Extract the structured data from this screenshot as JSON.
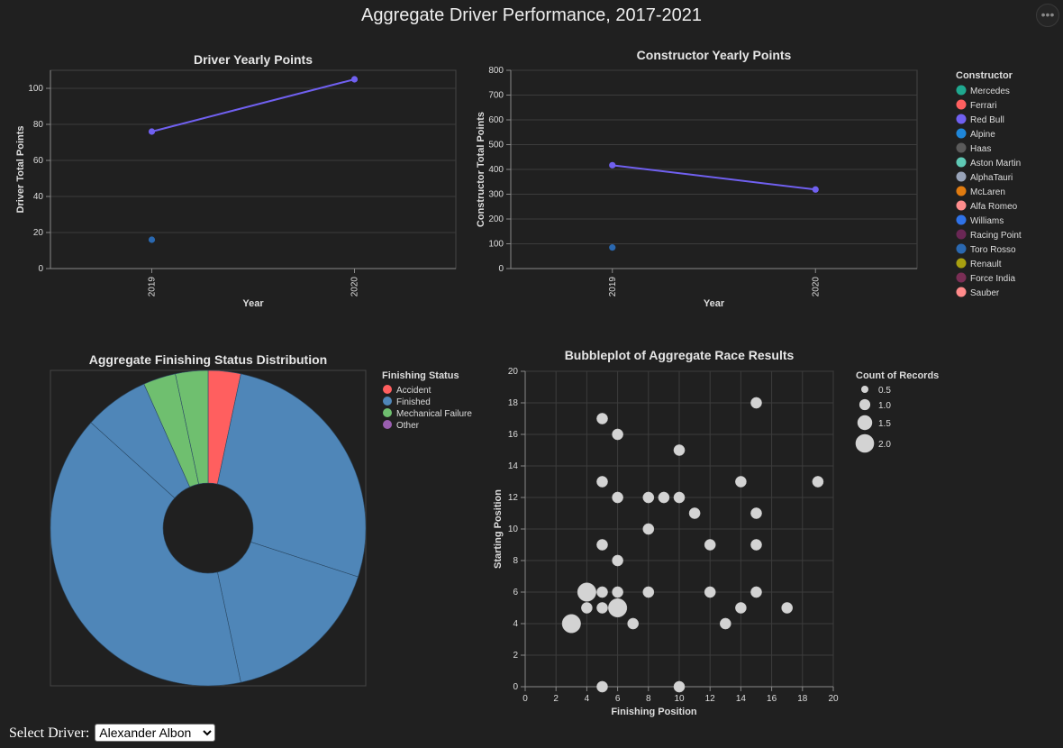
{
  "page": {
    "title": "Aggregate Driver Performance, 2017-2021",
    "menu_icon": "ellipsis-icon",
    "menu_glyph": "•••"
  },
  "footer": {
    "label": "Select Driver:",
    "selected_driver": "Alexander Albon"
  },
  "colors": {
    "background": "#202020",
    "grid": "#3c3c3c",
    "text": "#dddddd",
    "red_bull": "#7060f0",
    "toro_rosso": "#2a68b0",
    "finished": "#4f86b8",
    "accident": "#ff5f5f",
    "mechanical": "#6fbf6f",
    "other": "#9a5fb0",
    "bubble": "#d3d3d3"
  },
  "chart_data": [
    {
      "id": "driver",
      "type": "line",
      "title": "Driver Yearly Points",
      "xlabel": "Year",
      "ylabel": "Driver Total Points",
      "x_ticks": [
        "2019",
        "2020"
      ],
      "y_ticks": [
        0,
        20,
        40,
        60,
        80,
        100
      ],
      "ylim": [
        0,
        110
      ],
      "grid": true,
      "series": [
        {
          "constructor": "Red Bull",
          "color": "#7060f0",
          "line": true,
          "x": [
            "2019",
            "2020"
          ],
          "y": [
            76,
            105
          ]
        },
        {
          "constructor": "Toro Rosso",
          "color": "#2a68b0",
          "line": false,
          "x": [
            "2019"
          ],
          "y": [
            16
          ]
        }
      ]
    },
    {
      "id": "constructor",
      "type": "line",
      "title": "Constructor Yearly Points",
      "xlabel": "Year",
      "ylabel": "Constructor Total Points",
      "x_ticks": [
        "2019",
        "2020"
      ],
      "y_ticks": [
        0,
        100,
        200,
        300,
        400,
        500,
        600,
        700,
        800
      ],
      "ylim": [
        0,
        800
      ],
      "grid": true,
      "legend": {
        "title": "Constructor",
        "placement": "right",
        "items": [
          {
            "label": "Mercedes",
            "color": "#1fa88f"
          },
          {
            "label": "Ferrari",
            "color": "#ff6060"
          },
          {
            "label": "Red Bull",
            "color": "#7060f0"
          },
          {
            "label": "Alpine",
            "color": "#1f86d8"
          },
          {
            "label": "Haas",
            "color": "#5a5a5a"
          },
          {
            "label": "Aston Martin",
            "color": "#5fc9b5"
          },
          {
            "label": "AlphaTauri",
            "color": "#98a3b8"
          },
          {
            "label": "McLaren",
            "color": "#e07b10"
          },
          {
            "label": "Alfa Romeo",
            "color": "#ff8d8d"
          },
          {
            "label": "Williams",
            "color": "#2f72e8"
          },
          {
            "label": "Racing Point",
            "color": "#6a2755"
          },
          {
            "label": "Toro Rosso",
            "color": "#2a68b0"
          },
          {
            "label": "Renault",
            "color": "#a8a010"
          },
          {
            "label": "Force India",
            "color": "#7a2e55"
          },
          {
            "label": "Sauber",
            "color": "#ff8a8a"
          }
        ]
      },
      "series": [
        {
          "constructor": "Red Bull",
          "color": "#7060f0",
          "line": true,
          "x": [
            "2019",
            "2020"
          ],
          "y": [
            417,
            319
          ]
        },
        {
          "constructor": "Toro Rosso",
          "color": "#2a68b0",
          "line": false,
          "x": [
            "2019"
          ],
          "y": [
            85
          ]
        }
      ]
    },
    {
      "id": "status",
      "type": "pie",
      "title": "Aggregate Finishing Status Distribution",
      "legend": {
        "title": "Finishing Status",
        "placement": "right",
        "items": [
          {
            "label": "Accident",
            "color": "#ff5f5f"
          },
          {
            "label": "Finished",
            "color": "#4f86b8"
          },
          {
            "label": "Mechanical Failure",
            "color": "#6fbf6f"
          },
          {
            "label": "Other",
            "color": "#9a5fb0"
          }
        ]
      },
      "slices": [
        {
          "status": "Accident",
          "value": 1,
          "color": "#ff5f5f"
        },
        {
          "status": "Finished",
          "value": 8,
          "color": "#4f86b8"
        },
        {
          "status": "Finished",
          "value": 5,
          "color": "#4f86b8"
        },
        {
          "status": "Finished",
          "value": 12,
          "color": "#4f86b8"
        },
        {
          "status": "Finished",
          "value": 2,
          "color": "#4f86b8"
        },
        {
          "status": "Mechanical Failure",
          "value": 1,
          "color": "#6fbf6f"
        },
        {
          "status": "Mechanical Failure",
          "value": 1,
          "color": "#6fbf6f"
        }
      ]
    },
    {
      "id": "bubble",
      "type": "scatter",
      "title": "Bubbleplot of Aggregate Race Results",
      "xlabel": "Finishing Position",
      "ylabel": "Starting Position",
      "xlim": [
        0,
        20
      ],
      "ylim": [
        0,
        20
      ],
      "x_ticks": [
        0,
        2,
        4,
        6,
        8,
        10,
        12,
        14,
        16,
        18,
        20
      ],
      "y_ticks": [
        0,
        2,
        4,
        6,
        8,
        10,
        12,
        14,
        16,
        18,
        20
      ],
      "grid": true,
      "legend": {
        "title": "Count of Records",
        "placement": "right",
        "items": [
          {
            "label": "0.5",
            "size": 0.5
          },
          {
            "label": "1.0",
            "size": 1.0
          },
          {
            "label": "1.5",
            "size": 1.5
          },
          {
            "label": "2.0",
            "size": 2.0
          }
        ]
      },
      "points": [
        {
          "x": 3,
          "y": 4,
          "count": 2
        },
        {
          "x": 4,
          "y": 5,
          "count": 1
        },
        {
          "x": 4,
          "y": 6,
          "count": 2
        },
        {
          "x": 5,
          "y": 0,
          "count": 1
        },
        {
          "x": 5,
          "y": 5,
          "count": 1
        },
        {
          "x": 5,
          "y": 6,
          "count": 1
        },
        {
          "x": 5,
          "y": 9,
          "count": 1
        },
        {
          "x": 5,
          "y": 13,
          "count": 1
        },
        {
          "x": 5,
          "y": 17,
          "count": 1
        },
        {
          "x": 6,
          "y": 5,
          "count": 2
        },
        {
          "x": 6,
          "y": 6,
          "count": 1
        },
        {
          "x": 6,
          "y": 8,
          "count": 1
        },
        {
          "x": 6,
          "y": 12,
          "count": 1
        },
        {
          "x": 6,
          "y": 16,
          "count": 1
        },
        {
          "x": 7,
          "y": 4,
          "count": 1
        },
        {
          "x": 8,
          "y": 6,
          "count": 1
        },
        {
          "x": 8,
          "y": 10,
          "count": 1
        },
        {
          "x": 8,
          "y": 12,
          "count": 1
        },
        {
          "x": 9,
          "y": 12,
          "count": 1
        },
        {
          "x": 10,
          "y": 0,
          "count": 1
        },
        {
          "x": 10,
          "y": 12,
          "count": 1
        },
        {
          "x": 10,
          "y": 15,
          "count": 1
        },
        {
          "x": 11,
          "y": 11,
          "count": 1
        },
        {
          "x": 12,
          "y": 6,
          "count": 1
        },
        {
          "x": 12,
          "y": 9,
          "count": 1
        },
        {
          "x": 13,
          "y": 4,
          "count": 1
        },
        {
          "x": 14,
          "y": 5,
          "count": 1
        },
        {
          "x": 14,
          "y": 13,
          "count": 1
        },
        {
          "x": 15,
          "y": 6,
          "count": 1
        },
        {
          "x": 15,
          "y": 9,
          "count": 1
        },
        {
          "x": 15,
          "y": 11,
          "count": 1
        },
        {
          "x": 15,
          "y": 18,
          "count": 1
        },
        {
          "x": 17,
          "y": 5,
          "count": 1
        },
        {
          "x": 19,
          "y": 13,
          "count": 1
        }
      ]
    }
  ]
}
